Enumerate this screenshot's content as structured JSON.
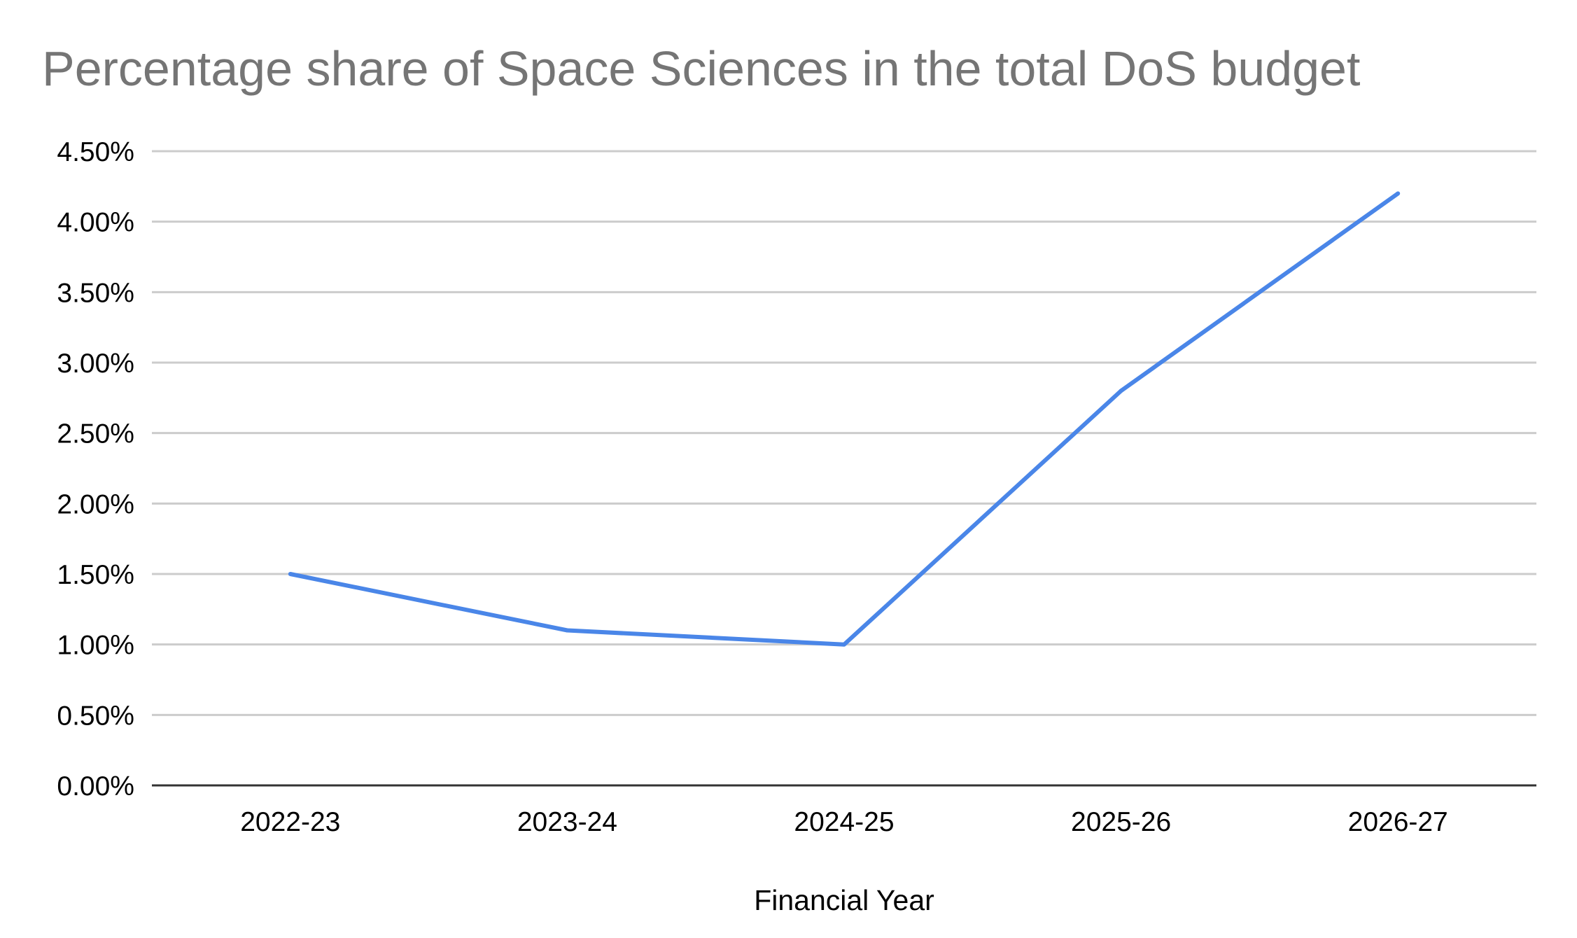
{
  "chart_data": {
    "type": "line",
    "title": "Percentage share of Space Sciences in the total DoS budget",
    "xlabel": "Financial Year",
    "ylabel": "",
    "categories": [
      "2022-23",
      "2023-24",
      "2024-25",
      "2025-26",
      "2026-27"
    ],
    "series": [
      {
        "name": "Percentage share of Space Sciences",
        "values": [
          1.5,
          1.1,
          1.0,
          2.8,
          4.2
        ],
        "color": "#4a86e8"
      }
    ],
    "ylim": [
      0,
      4.5
    ],
    "yticks": [
      0,
      0.5,
      1.0,
      1.5,
      2.0,
      2.5,
      3.0,
      3.5,
      4.0,
      4.5
    ],
    "ytick_labels": [
      "0.00%",
      "0.50%",
      "1.00%",
      "1.50%",
      "2.00%",
      "2.50%",
      "3.00%",
      "3.50%",
      "4.00%",
      "4.50%"
    ],
    "grid": true,
    "legend": "none",
    "colors": {
      "title": "#757575",
      "grid": "#cccccc",
      "baseline": "#333333",
      "text": "#000000"
    }
  }
}
